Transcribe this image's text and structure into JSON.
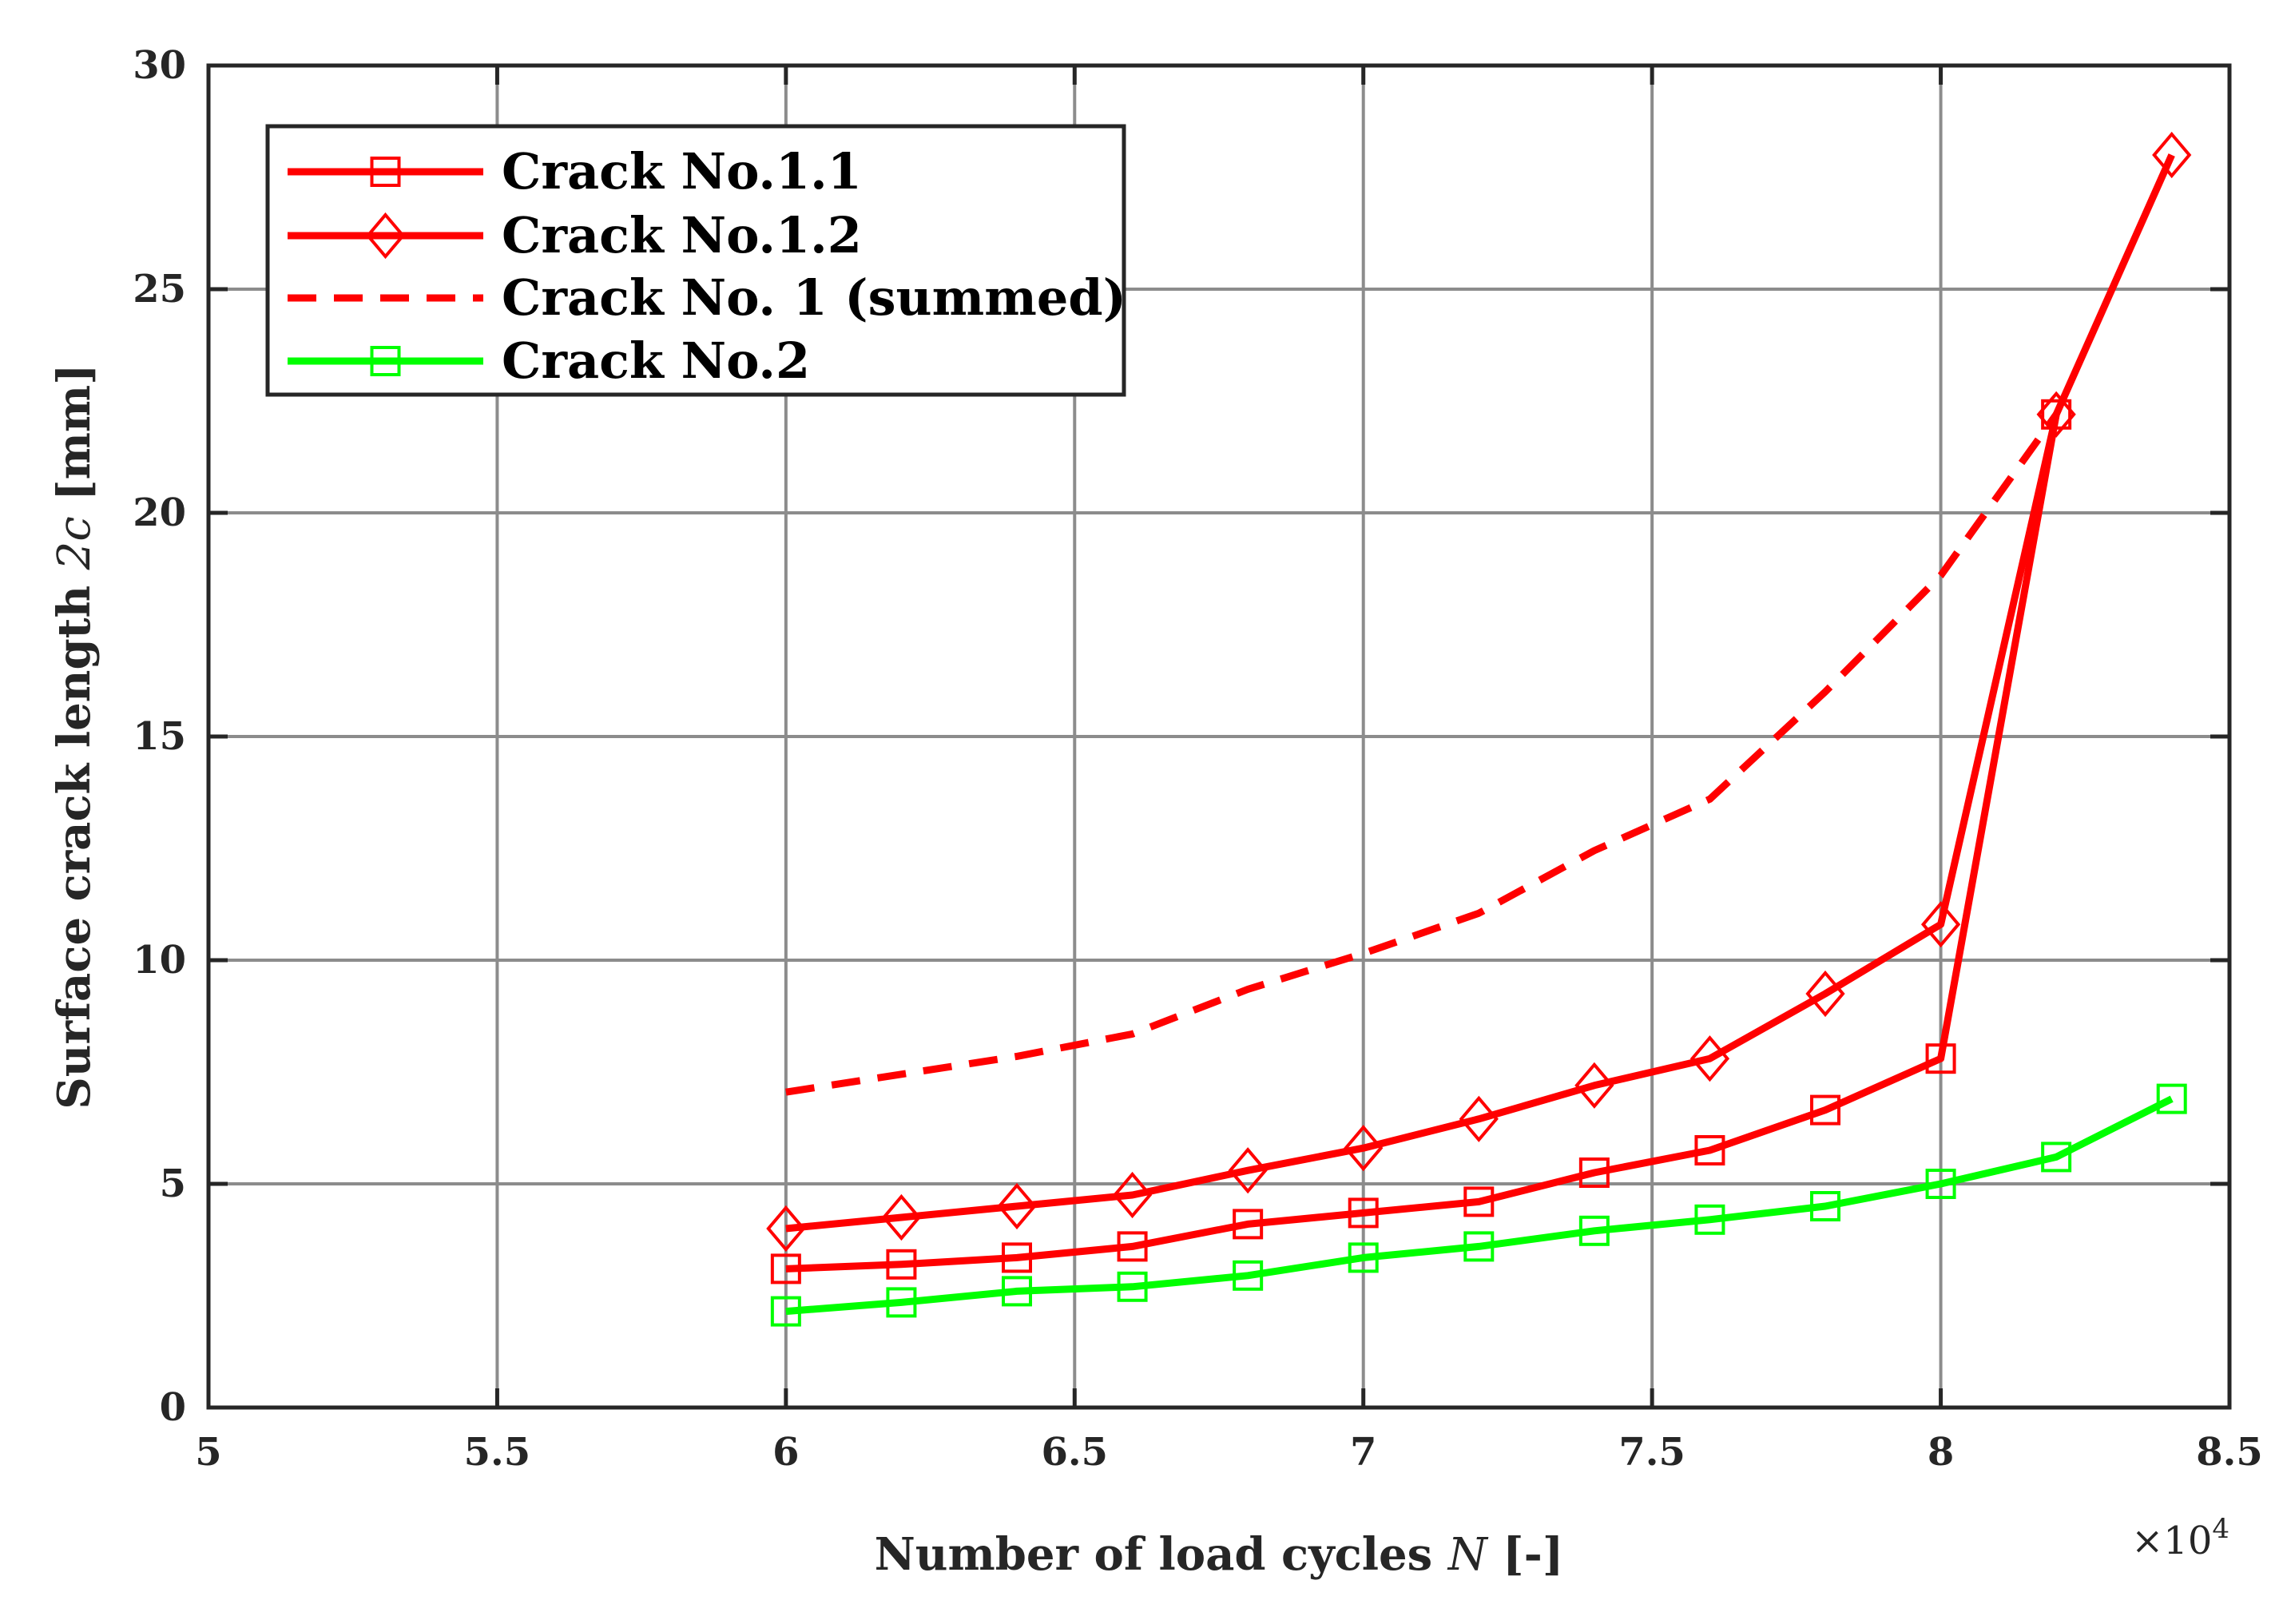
{
  "chart_data": {
    "type": "line",
    "xlabel_prefix": "Number of load cycles ",
    "xlabel_var": "N",
    "xlabel_suffix": " [-]",
    "ylabel_prefix": "Surface crack length ",
    "ylabel_var": "2c",
    "ylabel_suffix": " [mm]",
    "x_exponent_base": "×10",
    "x_exponent_power": "4",
    "xlim": [
      5,
      8.5
    ],
    "ylim": [
      0,
      30
    ],
    "grid": true,
    "legend_position": "top-left",
    "x_ticks": [
      5,
      5.5,
      6,
      6.5,
      7,
      7.5,
      8,
      8.5
    ],
    "x_tick_labels": [
      "5",
      "5.5",
      "6",
      "6.5",
      "7",
      "7.5",
      "8",
      "8.5"
    ],
    "y_ticks": [
      0,
      5,
      10,
      15,
      20,
      25,
      30
    ],
    "y_tick_labels": [
      "0",
      "5",
      "10",
      "15",
      "20",
      "25",
      "30"
    ],
    "series": [
      {
        "name": "Crack No.1.1",
        "color": "#ff0000",
        "marker": "square",
        "dash": "solid",
        "x": [
          6.0,
          6.2,
          6.4,
          6.6,
          6.8,
          7.0,
          7.2,
          7.4,
          7.6,
          7.8,
          8.0,
          8.2
        ],
        "y": [
          3.1,
          3.2,
          3.35,
          3.6,
          4.1,
          4.35,
          4.6,
          5.25,
          5.75,
          6.65,
          7.8,
          22.2
        ]
      },
      {
        "name": "Crack No.1.2",
        "color": "#ff0000",
        "marker": "diamond",
        "dash": "solid",
        "x": [
          6.0,
          6.2,
          6.4,
          6.6,
          6.8,
          7.0,
          7.2,
          7.4,
          7.6,
          7.8,
          8.0,
          8.2,
          8.4
        ],
        "y": [
          4.0,
          4.25,
          4.5,
          4.75,
          5.3,
          5.8,
          6.45,
          7.2,
          7.8,
          9.25,
          10.8,
          22.2,
          28.0
        ]
      },
      {
        "name": "Crack No. 1 (summed)",
        "color": "#ff0000",
        "marker": "none",
        "dash": "dashed",
        "x": [
          6.0,
          6.2,
          6.4,
          6.6,
          6.8,
          7.0,
          7.2,
          7.4,
          7.6,
          7.8,
          8.0,
          8.2
        ],
        "y": [
          7.05,
          7.45,
          7.85,
          8.35,
          9.35,
          10.15,
          11.05,
          12.45,
          13.6,
          16.0,
          18.6,
          22.2
        ]
      },
      {
        "name": "Crack No.2",
        "color": "#00ff00",
        "marker": "square",
        "dash": "solid",
        "x": [
          6.0,
          6.2,
          6.4,
          6.6,
          6.8,
          7.0,
          7.2,
          7.4,
          7.6,
          7.8,
          8.0,
          8.2,
          8.4
        ],
        "y": [
          2.15,
          2.35,
          2.6,
          2.7,
          2.95,
          3.35,
          3.6,
          3.95,
          4.2,
          4.5,
          5.0,
          5.6,
          6.9
        ]
      }
    ]
  }
}
